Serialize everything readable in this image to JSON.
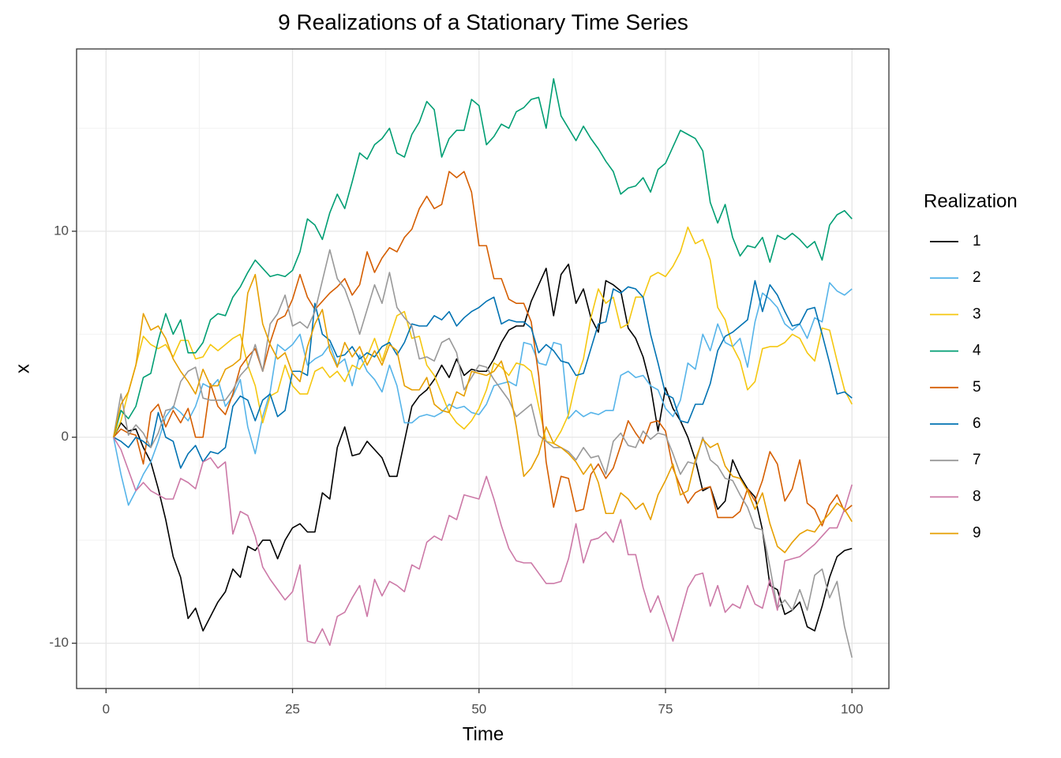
{
  "chart_data": {
    "type": "line",
    "title": "9 Realizations of a Stationary Time Series",
    "x_label": "Time",
    "y_label": "x",
    "legend_title": "Realization",
    "grid": true,
    "legend_position": "right",
    "xlim": [
      -3.95,
      104.95
    ],
    "ylim": [
      -12.2,
      18.85
    ],
    "xticks": [
      0,
      25,
      50,
      75,
      100
    ],
    "yticks": [
      -10,
      0,
      10
    ],
    "x": [
      1,
      2,
      3,
      4,
      5,
      6,
      7,
      8,
      9,
      10,
      11,
      12,
      13,
      14,
      15,
      16,
      17,
      18,
      19,
      20,
      21,
      22,
      23,
      24,
      25,
      26,
      27,
      28,
      29,
      30,
      31,
      32,
      33,
      34,
      35,
      36,
      37,
      38,
      39,
      40,
      41,
      42,
      43,
      44,
      45,
      46,
      47,
      48,
      49,
      50,
      51,
      52,
      53,
      54,
      55,
      56,
      57,
      58,
      59,
      60,
      61,
      62,
      63,
      64,
      65,
      66,
      67,
      68,
      69,
      70,
      71,
      72,
      73,
      74,
      75,
      76,
      77,
      78,
      79,
      80,
      81,
      82,
      83,
      84,
      85,
      86,
      87,
      88,
      89,
      90,
      91,
      92,
      93,
      94,
      95,
      96,
      97,
      98,
      99,
      100
    ],
    "series": [
      {
        "name": "1",
        "color": "#000000",
        "values": [
          0,
          0.7,
          0.3,
          0.4,
          -0.5,
          -1.2,
          -2.5,
          -4,
          -5.8,
          -6.8,
          -8.8,
          -8.3,
          -9.4,
          -8.7,
          -8,
          -7.5,
          -6.4,
          -6.8,
          -5.3,
          -5.5,
          -5,
          -5,
          -5.9,
          -5,
          -4.4,
          -4.2,
          -4.6,
          -4.6,
          -2.7,
          -3,
          -0.5,
          0.5,
          -0.9,
          -0.8,
          -0.2,
          -0.6,
          -1,
          -1.9,
          -1.9,
          -0.2,
          1.5,
          2,
          2.3,
          2.8,
          3.5,
          2.9,
          3.8,
          3,
          3.3,
          3.2,
          3.2,
          3.8,
          4.6,
          5.2,
          5.4,
          5.4,
          6.6,
          7.4,
          8.2,
          5.9,
          7.9,
          8.4,
          6.5,
          7.2,
          5.8,
          5.1,
          7.6,
          7.4,
          7.1,
          5.3,
          4.8,
          3.9,
          2.5,
          0.3,
          2.4,
          1.4,
          0.8,
          0,
          -1.1,
          -2.6,
          -2.4,
          -3.5,
          -3.1,
          -1.1,
          -1.9,
          -2.5,
          -2.9,
          -4.5,
          -7.2,
          -7.4,
          -8.6,
          -8.4,
          -8,
          -9.2,
          -9.4,
          -8.2,
          -6.8,
          -5.8,
          -5.5,
          -5.4
        ]
      },
      {
        "name": "2",
        "color": "#56B4E9",
        "values": [
          0,
          -1.8,
          -3.3,
          -2.6,
          -1.8,
          -1.2,
          -0.2,
          1,
          1.5,
          1.2,
          0.8,
          1.5,
          2.6,
          2.4,
          2.8,
          1.5,
          2,
          2.8,
          0.5,
          -0.8,
          1,
          2.2,
          4.5,
          4.2,
          4.5,
          5,
          3.5,
          3.8,
          4,
          4.5,
          3.5,
          3.8,
          2.5,
          4,
          3.2,
          2.8,
          2.2,
          3.5,
          2.5,
          0.7,
          0.7,
          1,
          1.1,
          1,
          1.2,
          1.6,
          1.4,
          1.5,
          1.2,
          1.1,
          1.6,
          2.5,
          2.6,
          2.7,
          2.5,
          4.6,
          4.5,
          3.6,
          3.5,
          4.6,
          4.5,
          0.9,
          1.3,
          1,
          1.2,
          1.1,
          1.3,
          1.3,
          3,
          3.2,
          2.9,
          3,
          2.5,
          2.3,
          1.4,
          1,
          1.8,
          3.6,
          3.3,
          5,
          4.2,
          5.5,
          4.6,
          4.4,
          4.8,
          3.4,
          5.6,
          7,
          6.7,
          6.3,
          5.5,
          5.2,
          5.5,
          4.8,
          5.8,
          5.6,
          7.5,
          7.1,
          6.9,
          7.2
        ]
      },
      {
        "name": "3",
        "color": "#F5C710",
        "values": [
          0,
          0.8,
          2.2,
          3.5,
          4.9,
          4.5,
          4.3,
          4.5,
          3.9,
          4.7,
          4.7,
          3.8,
          3.9,
          4.5,
          4.2,
          4.5,
          4.8,
          5,
          3.5,
          2.5,
          0.7,
          2,
          2.2,
          3.5,
          2.5,
          2.1,
          2.1,
          3.2,
          3.4,
          2.9,
          3.2,
          2.7,
          3.5,
          3.3,
          3.9,
          4.8,
          3.7,
          4.8,
          5.9,
          6.1,
          4.8,
          4.9,
          3.5,
          3,
          2.1,
          1.2,
          0.7,
          0.4,
          0.8,
          1.4,
          2.3,
          3.6,
          3.4,
          3,
          3.6,
          3.5,
          3.2,
          1.5,
          -0.2,
          -0.3,
          0.3,
          1.1,
          2.7,
          3.8,
          5.8,
          7.2,
          6.5,
          6.8,
          5.3,
          5.5,
          6.8,
          6.8,
          7.8,
          8,
          7.8,
          8.3,
          9,
          10.2,
          9.4,
          9.6,
          8.6,
          6.3,
          5.7,
          4.4,
          3.7,
          2.3,
          2.7,
          4.3,
          4.4,
          4.4,
          4.6,
          5,
          4.8,
          4.1,
          3.7,
          5.3,
          5.2,
          3.7,
          2.3,
          1.6
        ]
      },
      {
        "name": "4",
        "color": "#009E73",
        "values": [
          0,
          1.3,
          0.9,
          1.5,
          2.9,
          3.1,
          4.7,
          6,
          5,
          5.7,
          4.1,
          4.1,
          4.6,
          5.7,
          6,
          5.9,
          6.8,
          7.3,
          8,
          8.6,
          8.2,
          7.8,
          7.9,
          7.8,
          8.1,
          9,
          10.6,
          10.3,
          9.6,
          10.9,
          11.8,
          11.1,
          12.4,
          13.8,
          13.5,
          14.2,
          14.5,
          15,
          13.8,
          13.6,
          14.7,
          15.3,
          16.3,
          15.9,
          13.6,
          14.5,
          14.9,
          14.9,
          16.4,
          16.1,
          14.2,
          14.6,
          15.2,
          15,
          15.8,
          16,
          16.4,
          16.5,
          15,
          17.4,
          15.6,
          15,
          14.4,
          15.1,
          14.5,
          14,
          13.4,
          12.9,
          11.8,
          12.1,
          12.2,
          12.6,
          11.9,
          13,
          13.3,
          14.1,
          14.9,
          14.7,
          14.5,
          13.9,
          11.4,
          10.4,
          11.3,
          9.7,
          8.8,
          9.3,
          9.2,
          9.7,
          8.5,
          9.8,
          9.6,
          9.9,
          9.6,
          9.2,
          9.5,
          8.6,
          10.3,
          10.8,
          11,
          10.6
        ]
      },
      {
        "name": "5",
        "color": "#D55E00",
        "values": [
          0,
          0.4,
          0.2,
          0.1,
          -1.3,
          1.2,
          1.6,
          0.5,
          1.3,
          0.7,
          1.4,
          0,
          0,
          2.6,
          1.5,
          1.1,
          2.1,
          3.4,
          3.9,
          4.3,
          3.2,
          4.6,
          5.7,
          5.9,
          6.7,
          7.9,
          6.8,
          6.2,
          6.6,
          7,
          7.3,
          7.7,
          6.9,
          7.4,
          9,
          8,
          8.7,
          9.2,
          9,
          9.7,
          10.1,
          11.1,
          11.7,
          11.1,
          11.3,
          12.9,
          12.6,
          12.9,
          11.9,
          9.3,
          9.3,
          7.7,
          7.7,
          6.7,
          6.5,
          6.5,
          5.6,
          3,
          -1.2,
          -3.4,
          -1.9,
          -2,
          -3.6,
          -3.5,
          -1.8,
          -1.3,
          -2,
          -1.5,
          -0.4,
          0.8,
          0.2,
          -0.3,
          0.7,
          0.8,
          0.3,
          -1.5,
          -2.4,
          -3.2,
          -2.7,
          -2.5,
          -2.4,
          -3.9,
          -3.9,
          -3.9,
          -3.6,
          -2.5,
          -3.1,
          -2.1,
          -0.7,
          -1.3,
          -3.1,
          -2.5,
          -1.1,
          -3.2,
          -3.5,
          -4.3,
          -3.3,
          -2.8,
          -3.6,
          -3.3
        ]
      },
      {
        "name": "6",
        "color": "#0072B2",
        "values": [
          0,
          -0.2,
          -0.5,
          0,
          -0.2,
          -0.5,
          1.2,
          0,
          -0.2,
          -1.5,
          -0.8,
          -0.4,
          -1.2,
          -0.7,
          -0.8,
          -0.5,
          1.5,
          2,
          1.8,
          0.8,
          1.8,
          2.1,
          1,
          1.3,
          3.2,
          3.2,
          3,
          6.5,
          5,
          4.7,
          3.9,
          4,
          4.4,
          3.8,
          4.1,
          3.9,
          4.4,
          4.6,
          4,
          4.6,
          5.5,
          5.4,
          5.4,
          5.9,
          5.7,
          6.1,
          5.4,
          5.8,
          6.1,
          6.3,
          6.6,
          6.8,
          5.5,
          5.7,
          5.6,
          5.6,
          5.3,
          4.1,
          4.5,
          4.2,
          3.7,
          3.6,
          3,
          3.1,
          4.3,
          5.5,
          5.6,
          7.2,
          7,
          7.3,
          7.2,
          6.8,
          5,
          3.6,
          2.1,
          1.9,
          0.8,
          0.7,
          1.6,
          1.6,
          2.6,
          4.2,
          4.9,
          5.1,
          5.4,
          5.7,
          7.6,
          6.1,
          7.4,
          6.9,
          6.1,
          5.4,
          5.5,
          6.2,
          6.3,
          5,
          3.6,
          2.1,
          2.2,
          1.9
        ]
      },
      {
        "name": "7",
        "color": "#999999",
        "values": [
          0,
          2.1,
          0.1,
          0.6,
          0.2,
          -0.5,
          0.2,
          1.3,
          1.4,
          2.7,
          3.2,
          3.4,
          1.9,
          1.8,
          1.8,
          1.8,
          2.3,
          3,
          3.4,
          4.5,
          3.2,
          5.5,
          6,
          6.9,
          5.4,
          5.6,
          5.3,
          6.1,
          7.6,
          9.1,
          7.7,
          7.2,
          6.2,
          5,
          6.2,
          7.4,
          6.5,
          8,
          6.3,
          5.8,
          5.4,
          3.8,
          3.9,
          3.7,
          4.6,
          4.8,
          4.1,
          2.3,
          2.9,
          3.5,
          3.4,
          2.8,
          2.3,
          1.8,
          1,
          1.3,
          1.6,
          0.1,
          -0.2,
          -0.5,
          -0.5,
          -0.7,
          -1.1,
          -0.5,
          -1,
          -0.9,
          -1.8,
          -0.2,
          0.2,
          -0.4,
          -0.5,
          0.3,
          -0.1,
          0.2,
          0.1,
          -0.8,
          -1.8,
          -1.2,
          -1.3,
          0,
          -1.1,
          -1.4,
          -2,
          -2.1,
          -2.8,
          -3.4,
          -4.4,
          -4.5,
          -6.3,
          -8.3,
          -7.9,
          -8.4,
          -7.4,
          -8.4,
          -6.7,
          -6.4,
          -7.8,
          -7,
          -9.2,
          -10.7
        ]
      },
      {
        "name": "8",
        "color": "#CC79A7",
        "values": [
          0,
          -0.6,
          -1.6,
          -2.6,
          -2.2,
          -2.6,
          -2.8,
          -3,
          -3,
          -2,
          -2.2,
          -2.5,
          -1.2,
          -1,
          -1.5,
          -1.2,
          -4.7,
          -3.6,
          -3.8,
          -4.8,
          -6.3,
          -6.9,
          -7.4,
          -7.9,
          -7.5,
          -6.2,
          -9.9,
          -10,
          -9.3,
          -10.1,
          -8.7,
          -8.5,
          -7.8,
          -7.2,
          -8.7,
          -6.9,
          -7.7,
          -7,
          -7.2,
          -7.5,
          -6.2,
          -6.4,
          -5.1,
          -4.8,
          -5,
          -3.8,
          -4,
          -2.8,
          -2.9,
          -3,
          -1.9,
          -3,
          -4.3,
          -5.4,
          -6,
          -6.1,
          -6.1,
          -6.6,
          -7.1,
          -7.1,
          -7,
          -5.9,
          -4.2,
          -6.1,
          -5,
          -4.9,
          -4.6,
          -5.1,
          -4,
          -5.7,
          -5.7,
          -7.3,
          -8.5,
          -7.7,
          -8.8,
          -9.9,
          -8.6,
          -7.3,
          -6.7,
          -6.6,
          -8.2,
          -7.2,
          -8.5,
          -8.1,
          -8.3,
          -7.2,
          -8.1,
          -8.3,
          -6.9,
          -8.4,
          -6,
          -5.9,
          -5.8,
          -5.5,
          -5.2,
          -4.8,
          -4.4,
          -4.4,
          -3.5,
          -2.3
        ]
      },
      {
        "name": "9",
        "color": "#E69F00",
        "values": [
          0,
          1.6,
          2.2,
          3.5,
          6,
          5.2,
          5.4,
          4.8,
          3.8,
          3.2,
          2.7,
          2.1,
          3.3,
          2.5,
          2.5,
          3.3,
          3.5,
          3.8,
          7,
          7.9,
          5.5,
          4.5,
          3.8,
          4.1,
          3.1,
          2.7,
          4.4,
          5.5,
          6.2,
          4.2,
          3.4,
          4.6,
          3.9,
          4.4,
          3.5,
          4.2,
          3.5,
          4.5,
          4.2,
          2.5,
          2.3,
          2.3,
          2.9,
          1.6,
          1.3,
          1.2,
          2.2,
          2,
          3.2,
          3.1,
          3,
          3.2,
          3.7,
          2.5,
          0.5,
          -1.9,
          -1.5,
          -0.8,
          0.5,
          -0.3,
          -0.5,
          -0.8,
          -1.2,
          -1.8,
          -1.3,
          -2.2,
          -3.7,
          -3.7,
          -2.7,
          -3,
          -3.5,
          -3.2,
          -4,
          -2.8,
          -2.1,
          -1.3,
          -2.8,
          -2.6,
          -1.1,
          -0.1,
          -0.5,
          -0.3,
          -1.4,
          -1.9,
          -2,
          -2.6,
          -3.5,
          -2.7,
          -4.2,
          -5.3,
          -5.6,
          -5.1,
          -4.7,
          -4.5,
          -4.6,
          -4.1,
          -3.7,
          -3.2,
          -3.5,
          -4.1
        ]
      }
    ]
  }
}
